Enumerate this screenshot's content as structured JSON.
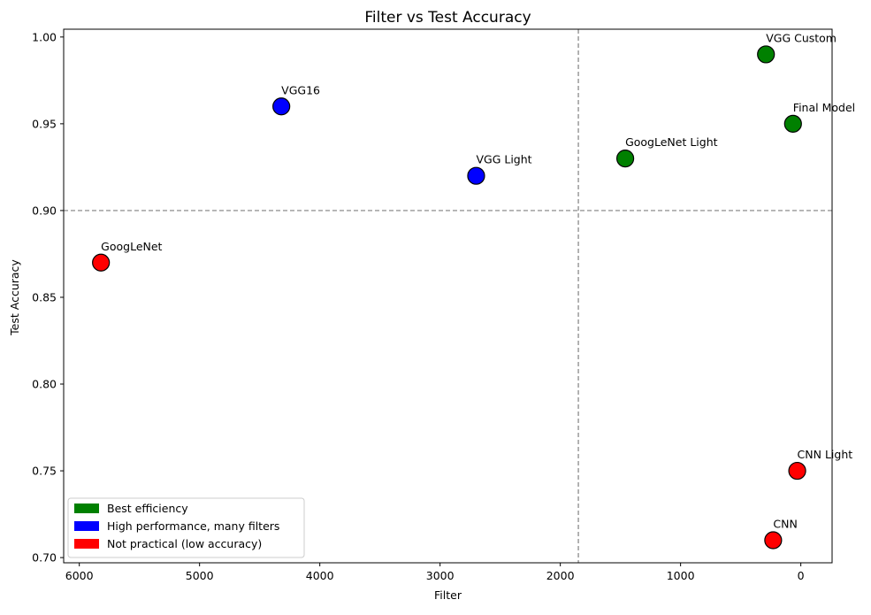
{
  "chart_data": {
    "type": "scatter",
    "title": "Filter vs Test Accuracy",
    "xlabel": "Filter",
    "ylabel": "Test Accuracy",
    "xlim": [
      6130,
      -260
    ],
    "ylim": [
      0.697,
      1.0045
    ],
    "x_reversed": true,
    "xticks": [
      6000,
      5000,
      4000,
      3000,
      2000,
      1000,
      0
    ],
    "xtick_labels": [
      "6000",
      "5000",
      "4000",
      "3000",
      "2000",
      "1000",
      "0"
    ],
    "yticks": [
      0.7,
      0.75,
      0.8,
      0.85,
      0.9,
      0.95,
      1.0
    ],
    "ytick_labels": [
      "0.70",
      "0.75",
      "0.80",
      "0.85",
      "0.90",
      "0.95",
      "1.00"
    ],
    "reference_lines": [
      {
        "orientation": "vertical",
        "x": 1850,
        "style": "dashed",
        "color": "#808080"
      },
      {
        "orientation": "horizontal",
        "y": 0.9,
        "style": "dashed",
        "color": "#808080"
      }
    ],
    "grid": false,
    "legend_position": "lower-left",
    "categories": [
      {
        "key": "best",
        "name": "Best efficiency",
        "color": "#008000"
      },
      {
        "key": "high",
        "name": "High performance, many filters",
        "color": "#0000ff"
      },
      {
        "key": "low",
        "name": "Not practical (low accuracy)",
        "color": "#ff0000"
      }
    ],
    "points": [
      {
        "label": "VGG Custom",
        "x": 290,
        "y": 0.99,
        "category": "best"
      },
      {
        "label": "Final Model",
        "x": 65,
        "y": 0.95,
        "category": "best"
      },
      {
        "label": "GoogLeNet Light",
        "x": 1460,
        "y": 0.93,
        "category": "best"
      },
      {
        "label": "VGG16",
        "x": 4320,
        "y": 0.96,
        "category": "high"
      },
      {
        "label": "VGG Light",
        "x": 2700,
        "y": 0.92,
        "category": "high"
      },
      {
        "label": "GoogLeNet",
        "x": 5820,
        "y": 0.87,
        "category": "low"
      },
      {
        "label": "CNN Light",
        "x": 30,
        "y": 0.75,
        "category": "low"
      },
      {
        "label": "CNN",
        "x": 230,
        "y": 0.71,
        "category": "low"
      }
    ]
  }
}
